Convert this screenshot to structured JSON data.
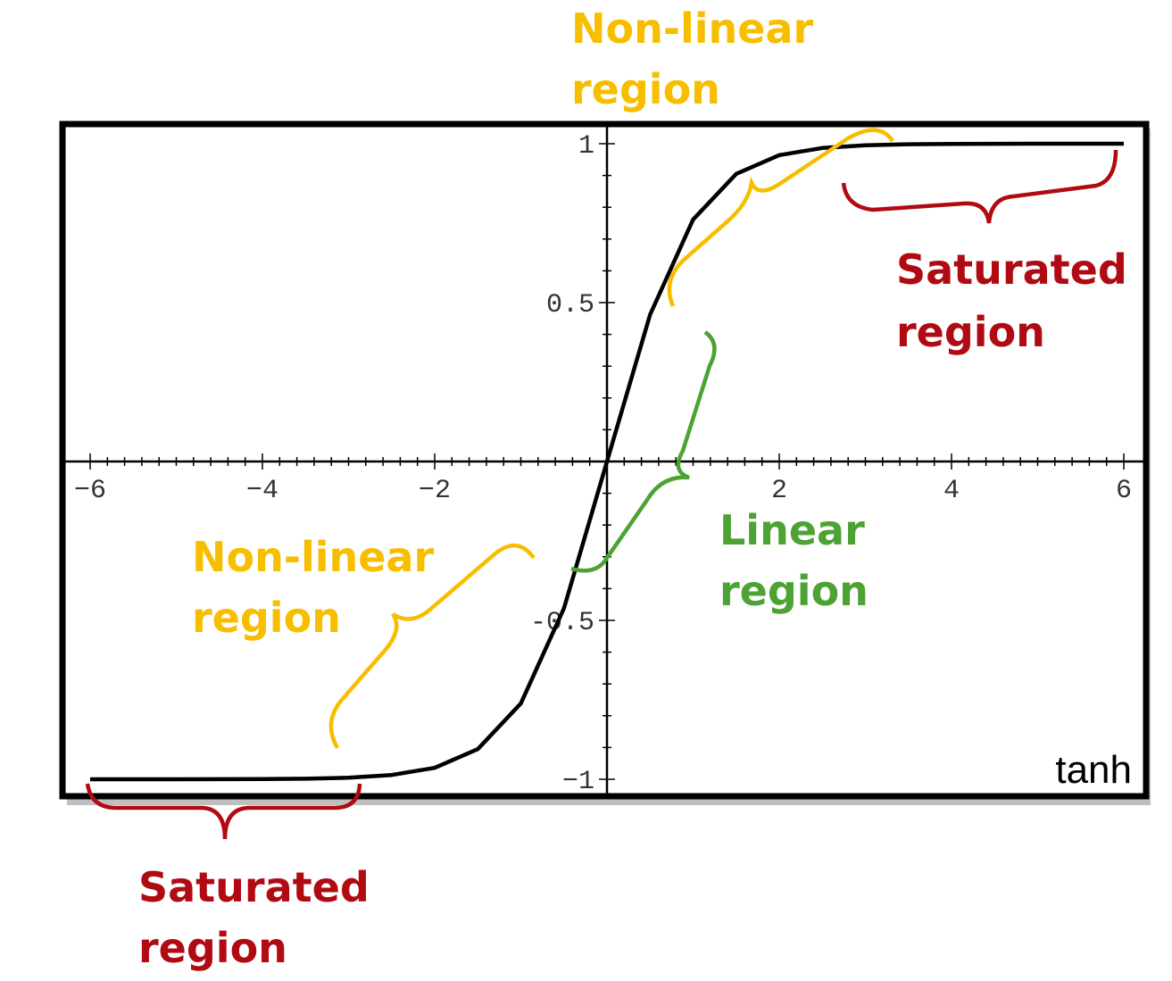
{
  "chart_data": {
    "type": "line",
    "function": "tanh",
    "title": "",
    "xlabel": "",
    "ylabel": "",
    "xlim": [
      -6,
      6
    ],
    "ylim": [
      -1,
      1
    ],
    "x_ticks": [
      {
        "value": -6,
        "label": "−6"
      },
      {
        "value": -4,
        "label": "−4"
      },
      {
        "value": -2,
        "label": "−2"
      },
      {
        "value": 2,
        "label": "2"
      },
      {
        "value": 4,
        "label": "4"
      },
      {
        "value": 6,
        "label": "6"
      }
    ],
    "y_ticks": [
      {
        "value": 1,
        "label": "1"
      },
      {
        "value": 0.5,
        "label": "0.5"
      },
      {
        "value": -0.5,
        "label": "-0.5"
      },
      {
        "value": -1,
        "label": "−1"
      }
    ],
    "series": [
      {
        "x": [
          -6,
          -5.5,
          -5,
          -4.5,
          -4,
          -3.5,
          -3,
          -2.5,
          -2,
          -1.5,
          -1,
          -0.5,
          0,
          0.5,
          1,
          1.5,
          2,
          2.5,
          3,
          3.5,
          4,
          4.5,
          5,
          5.5,
          6
        ],
        "y": [
          -1.0,
          -1.0,
          -0.9999,
          -0.9998,
          -0.9993,
          -0.9982,
          -0.9951,
          -0.9866,
          -0.964,
          -0.9051,
          -0.7616,
          -0.4621,
          0,
          0.4621,
          0.7616,
          0.9051,
          0.964,
          0.9866,
          0.9951,
          0.9982,
          0.9993,
          0.9998,
          0.9999,
          1.0,
          1.0
        ]
      }
    ],
    "function_label": "tanh",
    "grid": false,
    "annotations": [
      {
        "region": "saturated-negative",
        "text": "Saturated region",
        "color": "#b00a12",
        "x_range": [
          -6,
          -2.9
        ]
      },
      {
        "region": "nonlinear-negative",
        "text": "Non-linear region",
        "color": "#f7be00",
        "x_range": [
          -3.1,
          -0.8
        ]
      },
      {
        "region": "linear",
        "text": "Linear region",
        "color": "#4ca232",
        "x_range": [
          -0.4,
          1.2
        ]
      },
      {
        "region": "nonlinear-positive",
        "text": "Non-linear region",
        "color": "#f7be00",
        "x_range": [
          0.8,
          3.3
        ]
      },
      {
        "region": "saturated-positive",
        "text": "Saturated region",
        "color": "#b00a12",
        "x_range": [
          2.8,
          6
        ]
      }
    ]
  },
  "colors": {
    "saturated": "#b00a12",
    "nonlinear": "#f7be00",
    "linear": "#4ca232",
    "curve": "#000000"
  }
}
